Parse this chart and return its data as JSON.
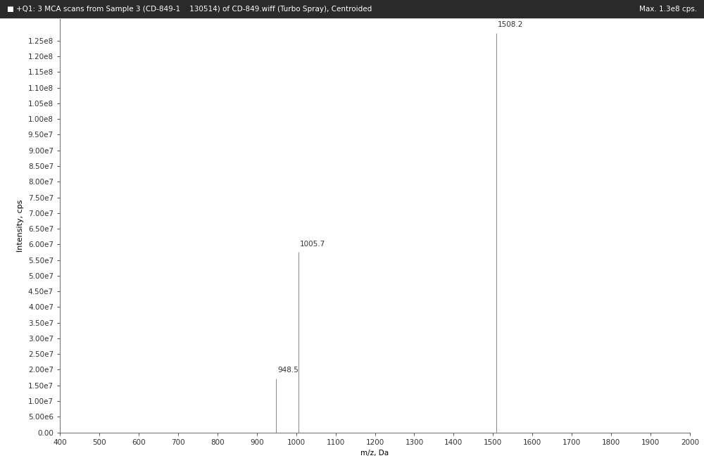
{
  "title_left": "■ +Q1: 3 MCA scans from Sample 3 (CD-849-1    130514) of CD-849.wiff (Turbo Spray), Centroided",
  "title_right": "Max. 1.3e8 cps.",
  "xlabel": "m/z, Da",
  "ylabel": "Intensity, cps",
  "xlim": [
    400,
    2000
  ],
  "ylim": [
    0,
    132000000.0
  ],
  "xticks": [
    400,
    500,
    600,
    700,
    800,
    900,
    1000,
    1100,
    1200,
    1300,
    1400,
    1500,
    1600,
    1700,
    1800,
    1900,
    2000
  ],
  "yticks": [
    0.0,
    5000000.0,
    10000000.0,
    15000000.0,
    20000000.0,
    25000000.0,
    30000000.0,
    35000000.0,
    40000000.0,
    45000000.0,
    50000000.0,
    55000000.0,
    60000000.0,
    65000000.0,
    70000000.0,
    75000000.0,
    80000000.0,
    85000000.0,
    90000000.0,
    95000000.0,
    100000000.0,
    105000000.0,
    110000000.0,
    115000000.0,
    120000000.0,
    125000000.0
  ],
  "peaks": [
    {
      "mz": 948.5,
      "intensity": 17200000.0,
      "label": "948.5"
    },
    {
      "mz": 1005.7,
      "intensity": 57500000.0,
      "label": "1005.7"
    },
    {
      "mz": 1508.2,
      "intensity": 127500000.0,
      "label": "1508.2"
    }
  ],
  "stem_color": "#888888",
  "background_color": "#ffffff",
  "header_bg_color": "#2a2a2a",
  "header_text_color": "#ffffff",
  "label_fontsize": 7.5,
  "axis_fontsize": 7.5,
  "title_fontsize": 7.5,
  "ylabel_fontsize": 8
}
